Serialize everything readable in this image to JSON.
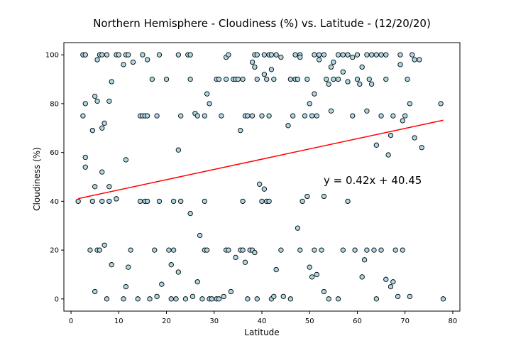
{
  "chart_data": {
    "type": "scatter",
    "title": "Northern Hemisphere - Cloudiness (%) vs. Latitude - (12/20/20)",
    "xlabel": "Latitude",
    "ylabel": "Cloudiness (%)",
    "xlim": [
      -1.5,
      81.5
    ],
    "ylim": [
      -5,
      105
    ],
    "xticks": [
      0,
      10,
      20,
      30,
      40,
      50,
      60,
      70,
      80
    ],
    "yticks": [
      0,
      20,
      40,
      60,
      80,
      100
    ],
    "grid": false,
    "marker_fill": "#add8e6",
    "marker_edge": "#000000",
    "regression": {
      "slope": 0.42,
      "intercept": 40.45,
      "x_start": 1.5,
      "x_end": 78,
      "color": "#ff0000",
      "equation": "y = 0.42x + 40.45"
    },
    "points": [
      [
        2.5,
        100
      ],
      [
        3,
        100
      ],
      [
        5.5,
        98
      ],
      [
        6,
        100
      ],
      [
        6.5,
        100
      ],
      [
        7.5,
        100
      ],
      [
        9.5,
        100
      ],
      [
        10,
        100
      ],
      [
        11,
        96
      ],
      [
        11.5,
        100
      ],
      [
        13,
        97
      ],
      [
        15,
        100
      ],
      [
        16,
        98
      ],
      [
        18.5,
        100
      ],
      [
        22.5,
        100
      ],
      [
        24.5,
        100
      ],
      [
        25,
        100
      ],
      [
        32.5,
        99
      ],
      [
        33,
        100
      ],
      [
        38,
        97
      ],
      [
        38.5,
        100
      ],
      [
        39,
        100
      ],
      [
        40.5,
        100
      ],
      [
        41.5,
        100
      ],
      [
        42,
        100
      ],
      [
        43,
        100
      ],
      [
        47,
        100
      ],
      [
        48,
        100
      ],
      [
        51,
        100
      ],
      [
        52,
        100
      ],
      [
        53,
        100
      ],
      [
        54.5,
        95
      ],
      [
        55,
        97
      ],
      [
        56,
        100
      ],
      [
        57,
        100
      ],
      [
        58,
        100
      ],
      [
        59,
        99
      ],
      [
        60,
        100
      ],
      [
        62,
        100
      ],
      [
        63,
        100
      ],
      [
        64,
        100
      ],
      [
        65,
        100
      ],
      [
        66,
        100
      ],
      [
        69,
        100
      ],
      [
        71.5,
        100
      ],
      [
        72,
        98
      ],
      [
        73,
        98
      ],
      [
        1.5,
        40
      ],
      [
        3,
        80
      ],
      [
        4.5,
        69
      ],
      [
        5,
        83
      ],
      [
        5.5,
        81
      ],
      [
        6.5,
        70
      ],
      [
        7,
        72
      ],
      [
        8,
        81
      ],
      [
        8.5,
        89
      ],
      [
        9.5,
        41
      ],
      [
        11.5,
        57
      ],
      [
        12,
        100
      ],
      [
        14.5,
        75
      ],
      [
        15,
        75
      ],
      [
        15.5,
        75
      ],
      [
        16,
        75
      ],
      [
        17,
        90
      ],
      [
        18,
        75
      ],
      [
        20,
        90
      ],
      [
        22.5,
        61
      ],
      [
        23,
        75
      ],
      [
        25,
        90
      ],
      [
        26,
        76
      ],
      [
        26.5,
        75
      ],
      [
        28,
        75
      ],
      [
        28.5,
        84
      ],
      [
        29,
        80
      ],
      [
        30.5,
        90
      ],
      [
        31,
        90
      ],
      [
        31.5,
        75
      ],
      [
        32.5,
        90
      ],
      [
        34,
        90
      ],
      [
        34.5,
        90
      ],
      [
        35,
        90
      ],
      [
        35.5,
        69
      ],
      [
        36,
        90
      ],
      [
        36.5,
        75
      ],
      [
        37,
        75
      ],
      [
        38,
        75
      ],
      [
        38.5,
        95
      ],
      [
        39,
        90
      ],
      [
        40,
        75
      ],
      [
        40.5,
        92
      ],
      [
        41,
        90
      ],
      [
        41.5,
        75
      ],
      [
        42,
        94
      ],
      [
        42.5,
        90
      ],
      [
        44,
        99
      ],
      [
        45.5,
        71
      ],
      [
        46,
        90
      ],
      [
        46.5,
        75
      ],
      [
        47,
        90
      ],
      [
        47.5,
        90
      ],
      [
        48,
        99
      ],
      [
        49,
        75
      ],
      [
        49.5,
        90
      ],
      [
        50,
        80
      ],
      [
        50.5,
        75
      ],
      [
        51,
        84
      ],
      [
        51.5,
        75
      ],
      [
        52,
        98
      ],
      [
        53.5,
        90
      ],
      [
        54,
        88
      ],
      [
        54.5,
        77
      ],
      [
        55,
        90
      ],
      [
        56,
        90
      ],
      [
        57,
        93
      ],
      [
        58,
        89
      ],
      [
        59,
        75
      ],
      [
        60,
        90
      ],
      [
        60.5,
        88
      ],
      [
        61,
        95
      ],
      [
        62,
        77
      ],
      [
        62.5,
        90
      ],
      [
        63,
        88
      ],
      [
        64,
        63
      ],
      [
        65,
        75
      ],
      [
        66,
        90
      ],
      [
        66.5,
        59
      ],
      [
        67,
        67
      ],
      [
        67.5,
        75
      ],
      [
        69,
        96
      ],
      [
        69.5,
        73
      ],
      [
        70,
        75
      ],
      [
        70.5,
        90
      ],
      [
        71,
        80
      ],
      [
        72,
        66
      ],
      [
        73.5,
        62
      ],
      [
        77.5,
        80
      ],
      [
        2.5,
        75
      ],
      [
        3,
        54
      ],
      [
        3,
        58
      ],
      [
        4,
        20
      ],
      [
        4.5,
        40
      ],
      [
        5,
        3
      ],
      [
        5,
        46
      ],
      [
        5.5,
        20
      ],
      [
        6,
        20
      ],
      [
        6.5,
        40
      ],
      [
        6.5,
        52
      ],
      [
        7,
        22
      ],
      [
        7.5,
        0
      ],
      [
        8,
        40
      ],
      [
        8,
        46
      ],
      [
        8.5,
        14
      ],
      [
        9.5,
        41
      ],
      [
        11,
        0
      ],
      [
        11.5,
        5
      ],
      [
        12,
        13
      ],
      [
        12.5,
        20
      ],
      [
        14,
        0
      ],
      [
        14.5,
        40
      ],
      [
        15.5,
        40
      ],
      [
        16,
        40
      ],
      [
        16.5,
        0
      ],
      [
        17.5,
        20
      ],
      [
        18,
        1
      ],
      [
        18.5,
        40
      ],
      [
        19,
        6
      ],
      [
        20.5,
        20
      ],
      [
        21,
        14
      ],
      [
        21,
        0
      ],
      [
        21.5,
        20
      ],
      [
        21.5,
        40
      ],
      [
        22,
        0
      ],
      [
        22.5,
        11
      ],
      [
        23,
        40
      ],
      [
        24,
        0
      ],
      [
        25,
        35
      ],
      [
        25.5,
        1
      ],
      [
        26.5,
        7
      ],
      [
        27,
        26
      ],
      [
        27.5,
        0
      ],
      [
        28,
        20
      ],
      [
        28.5,
        20
      ],
      [
        28,
        40
      ],
      [
        29,
        0
      ],
      [
        29.5,
        0
      ],
      [
        30.5,
        0
      ],
      [
        31,
        0
      ],
      [
        32,
        1
      ],
      [
        32.5,
        20
      ],
      [
        33,
        20
      ],
      [
        33.5,
        3
      ],
      [
        34.5,
        17
      ],
      [
        35.5,
        20
      ],
      [
        36,
        20
      ],
      [
        36.5,
        15
      ],
      [
        36,
        40
      ],
      [
        37,
        0
      ],
      [
        37.5,
        20
      ],
      [
        38,
        20
      ],
      [
        38.5,
        19
      ],
      [
        39,
        0
      ],
      [
        39.5,
        47
      ],
      [
        40,
        40
      ],
      [
        40.5,
        45
      ],
      [
        41,
        40
      ],
      [
        41.5,
        40
      ],
      [
        42,
        0
      ],
      [
        42.5,
        1
      ],
      [
        43,
        12
      ],
      [
        44,
        20
      ],
      [
        44.5,
        1
      ],
      [
        46,
        0
      ],
      [
        47.5,
        29
      ],
      [
        48,
        20
      ],
      [
        48.5,
        40
      ],
      [
        49.5,
        42
      ],
      [
        50,
        13
      ],
      [
        50.5,
        9
      ],
      [
        51,
        20
      ],
      [
        51.5,
        10
      ],
      [
        52.5,
        20
      ],
      [
        53,
        3
      ],
      [
        53,
        42
      ],
      [
        54,
        0
      ],
      [
        56,
        0
      ],
      [
        57,
        20
      ],
      [
        58,
        40
      ],
      [
        59.5,
        20
      ],
      [
        61,
        9
      ],
      [
        61.5,
        16
      ],
      [
        62,
        20
      ],
      [
        63.5,
        20
      ],
      [
        64,
        0
      ],
      [
        65,
        20
      ],
      [
        66,
        8
      ],
      [
        67,
        5
      ],
      [
        67.5,
        7
      ],
      [
        68,
        20
      ],
      [
        68.5,
        1
      ],
      [
        69.5,
        20
      ],
      [
        71,
        1
      ],
      [
        78,
        0
      ]
    ]
  }
}
